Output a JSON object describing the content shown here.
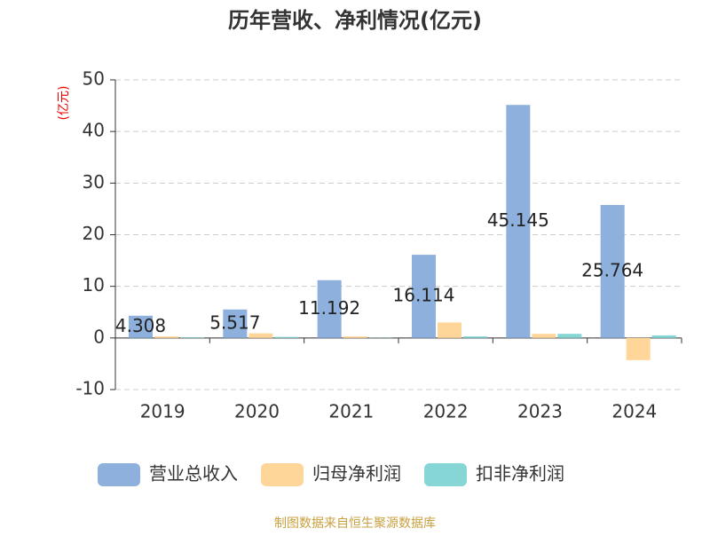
{
  "chart_data": {
    "type": "bar",
    "title": "历年营收、净利情况(亿元)",
    "y_label": "(亿元)",
    "categories": [
      "2019",
      "2020",
      "2021",
      "2022",
      "2023",
      "2024"
    ],
    "series": [
      {
        "name": "营业总收入",
        "color": "#8eb0dc",
        "values": [
          4.308,
          5.517,
          11.192,
          16.114,
          45.145,
          25.764
        ],
        "show_labels": true
      },
      {
        "name": "归母净利润",
        "color": "#ffd699",
        "values": [
          0.3,
          0.9,
          0.3,
          3.0,
          0.8,
          -4.3
        ]
      },
      {
        "name": "扣非净利润",
        "color": "#86d6d6",
        "values": [
          0.1,
          0.2,
          0.05,
          0.3,
          0.8,
          0.5
        ]
      }
    ],
    "ylim": [
      -10,
      50
    ],
    "yticks": [
      -10,
      0,
      10,
      20,
      30,
      40,
      50
    ],
    "grid": true,
    "source": "制图数据来自恒生聚源数据库"
  }
}
